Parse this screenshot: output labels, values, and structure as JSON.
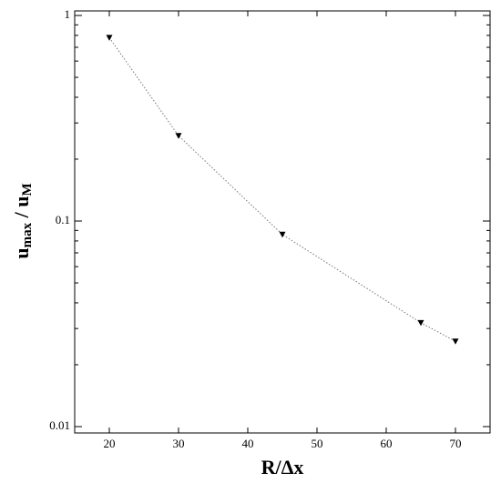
{
  "chart_data": {
    "type": "line",
    "xlabel": "R/Δx",
    "ylabel": [
      "u",
      "max",
      " / u",
      "M"
    ],
    "x": [
      20,
      30,
      45,
      65,
      70
    ],
    "series": [
      {
        "color": "#000000",
        "values": [
          0.78,
          0.26,
          0.086,
          0.032,
          0.026
        ]
      }
    ],
    "xlim": [
      15,
      75
    ],
    "xticks": [
      20,
      30,
      40,
      50,
      60,
      70
    ],
    "ylim": [
      0.01,
      1
    ],
    "yticks": [
      0.01,
      0.1,
      1
    ],
    "yminorticks": [
      0.02,
      0.03,
      0.04,
      0.05,
      0.06,
      0.07,
      0.08,
      0.09,
      0.2,
      0.3,
      0.4,
      0.5,
      0.6,
      0.7,
      0.8,
      0.9
    ],
    "yscale": "log",
    "grid": false
  }
}
